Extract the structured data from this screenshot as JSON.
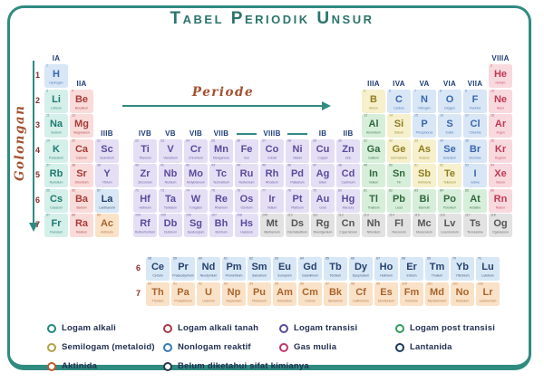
{
  "title": "Tabel Periodik Unsur",
  "axis": {
    "periode": "Periode",
    "golongan": "Golongan"
  },
  "period_numbers": [
    "1",
    "2",
    "3",
    "4",
    "5",
    "6",
    "7"
  ],
  "fblock_row_labels": [
    "6",
    "7"
  ],
  "frame_color": "#2f8b80",
  "group_labels": [
    {
      "text": "IA",
      "col": 1,
      "above_period": 1
    },
    {
      "text": "IIA",
      "col": 2,
      "above_period": 2
    },
    {
      "text": "IIIB",
      "col": 3,
      "above_period": 4
    },
    {
      "text": "IVB",
      "col": 4,
      "above_period": 4
    },
    {
      "text": "VB",
      "col": 5,
      "above_period": 4
    },
    {
      "text": "VIB",
      "col": 6,
      "above_period": 4
    },
    {
      "text": "VIIB",
      "col": 7,
      "above_period": 4
    },
    {
      "text": "VIIIB",
      "col": 9,
      "above_period": 4,
      "dashes": [
        8,
        10
      ]
    },
    {
      "text": "IB",
      "col": 11,
      "above_period": 4
    },
    {
      "text": "IIB",
      "col": 12,
      "above_period": 4
    },
    {
      "text": "IIIA",
      "col": 13,
      "above_period": 2
    },
    {
      "text": "IVA",
      "col": 14,
      "above_period": 2
    },
    {
      "text": "VA",
      "col": 15,
      "above_period": 2
    },
    {
      "text": "VIA",
      "col": 16,
      "above_period": 2
    },
    {
      "text": "VIIA",
      "col": 17,
      "above_period": 2
    },
    {
      "text": "VIIIA",
      "col": 18,
      "above_period": 1
    }
  ],
  "categories": {
    "alkali": {
      "bg": "#d5efe9",
      "fg": "#1d7a72"
    },
    "alkaline": {
      "bg": "#f9dcda",
      "fg": "#a93a38"
    },
    "transition": {
      "bg": "#e4dff4",
      "fg": "#5a4b9c"
    },
    "post": {
      "bg": "#d7efda",
      "fg": "#31683f"
    },
    "metalloid": {
      "bg": "#f6f0cc",
      "fg": "#8e7d22"
    },
    "nonmetal": {
      "bg": "#d8e6f6",
      "fg": "#3a67ae"
    },
    "noble": {
      "bg": "#f8d9dd",
      "fg": "#c03a55"
    },
    "lanthanide": {
      "bg": "#d7e7f5",
      "fg": "#27406e"
    },
    "actinide": {
      "bg": "#fae2c8",
      "fg": "#a9652c"
    },
    "unknown": {
      "bg": "#e2e2e2",
      "fg": "#555555"
    }
  },
  "elements": [
    [
      1,
      "H",
      "Hydrogen",
      1,
      1,
      "nonmetal"
    ],
    [
      2,
      "He",
      "Helium",
      1,
      18,
      "noble"
    ],
    [
      3,
      "Li",
      "Lithium",
      2,
      1,
      "alkali"
    ],
    [
      4,
      "Be",
      "Beryllium",
      2,
      2,
      "alkaline"
    ],
    [
      5,
      "B",
      "Boron",
      2,
      13,
      "metalloid"
    ],
    [
      6,
      "C",
      "Carbon",
      2,
      14,
      "nonmetal"
    ],
    [
      7,
      "N",
      "Nitrogen",
      2,
      15,
      "nonmetal"
    ],
    [
      8,
      "O",
      "Oxygen",
      2,
      16,
      "nonmetal"
    ],
    [
      9,
      "F",
      "Fluorine",
      2,
      17,
      "nonmetal"
    ],
    [
      10,
      "Ne",
      "Neon",
      2,
      18,
      "noble"
    ],
    [
      11,
      "Na",
      "Sodium",
      3,
      1,
      "alkali"
    ],
    [
      12,
      "Mg",
      "Magnesium",
      3,
      2,
      "alkaline"
    ],
    [
      13,
      "Al",
      "Aluminium",
      3,
      13,
      "post"
    ],
    [
      14,
      "Si",
      "Silicon",
      3,
      14,
      "metalloid"
    ],
    [
      15,
      "P",
      "Phosphorus",
      3,
      15,
      "nonmetal"
    ],
    [
      16,
      "S",
      "Sulfur",
      3,
      16,
      "nonmetal"
    ],
    [
      17,
      "Cl",
      "Chlorine",
      3,
      17,
      "nonmetal"
    ],
    [
      18,
      "Ar",
      "Argon",
      3,
      18,
      "noble"
    ],
    [
      19,
      "K",
      "Potassium",
      4,
      1,
      "alkali"
    ],
    [
      20,
      "Ca",
      "Calcium",
      4,
      2,
      "alkaline"
    ],
    [
      21,
      "Sc",
      "Scandium",
      4,
      3,
      "transition"
    ],
    [
      22,
      "Ti",
      "Titanium",
      4,
      4,
      "transition"
    ],
    [
      23,
      "V",
      "Vanadium",
      4,
      5,
      "transition"
    ],
    [
      24,
      "Cr",
      "Chromium",
      4,
      6,
      "transition"
    ],
    [
      25,
      "Mn",
      "Manganese",
      4,
      7,
      "transition"
    ],
    [
      26,
      "Fe",
      "Iron",
      4,
      8,
      "transition"
    ],
    [
      27,
      "Co",
      "Cobalt",
      4,
      9,
      "transition"
    ],
    [
      28,
      "Ni",
      "Nickel",
      4,
      10,
      "transition"
    ],
    [
      29,
      "Cu",
      "Copper",
      4,
      11,
      "transition"
    ],
    [
      30,
      "Zn",
      "Zinc",
      4,
      12,
      "transition"
    ],
    [
      31,
      "Ga",
      "Gallium",
      4,
      13,
      "post"
    ],
    [
      32,
      "Ge",
      "Germanium",
      4,
      14,
      "metalloid"
    ],
    [
      33,
      "As",
      "Arsenic",
      4,
      15,
      "metalloid"
    ],
    [
      34,
      "Se",
      "Selenium",
      4,
      16,
      "nonmetal"
    ],
    [
      35,
      "Br",
      "Bromine",
      4,
      17,
      "nonmetal"
    ],
    [
      36,
      "Kr",
      "Krypton",
      4,
      18,
      "noble"
    ],
    [
      37,
      "Rb",
      "Rubidium",
      5,
      1,
      "alkali"
    ],
    [
      38,
      "Sr",
      "Strontium",
      5,
      2,
      "alkaline"
    ],
    [
      39,
      "Y",
      "Yttrium",
      5,
      3,
      "transition"
    ],
    [
      40,
      "Zr",
      "Zirconium",
      5,
      4,
      "transition"
    ],
    [
      41,
      "Nb",
      "Niobium",
      5,
      5,
      "transition"
    ],
    [
      42,
      "Mo",
      "Molybdenum",
      5,
      6,
      "transition"
    ],
    [
      43,
      "Tc",
      "Technetium",
      5,
      7,
      "transition"
    ],
    [
      44,
      "Ru",
      "Ruthenium",
      5,
      8,
      "transition"
    ],
    [
      45,
      "Rh",
      "Rhodium",
      5,
      9,
      "transition"
    ],
    [
      46,
      "Pd",
      "Palladium",
      5,
      10,
      "transition"
    ],
    [
      47,
      "Ag",
      "Silver",
      5,
      11,
      "transition"
    ],
    [
      48,
      "Cd",
      "Cadmium",
      5,
      12,
      "transition"
    ],
    [
      49,
      "In",
      "Indium",
      5,
      13,
      "post"
    ],
    [
      50,
      "Sn",
      "Tin",
      5,
      14,
      "post"
    ],
    [
      51,
      "Sb",
      "Antimony",
      5,
      15,
      "metalloid"
    ],
    [
      52,
      "Te",
      "Tellurium",
      5,
      16,
      "metalloid"
    ],
    [
      53,
      "I",
      "Iodine",
      5,
      17,
      "nonmetal"
    ],
    [
      54,
      "Xe",
      "Xenon",
      5,
      18,
      "noble"
    ],
    [
      55,
      "Cs",
      "Caesium",
      6,
      1,
      "alkali"
    ],
    [
      56,
      "Ba",
      "Barium",
      6,
      2,
      "alkaline"
    ],
    [
      57,
      "La",
      "Lanthanum",
      6,
      3,
      "lanthanide"
    ],
    [
      72,
      "Hf",
      "Hafnium",
      6,
      4,
      "transition"
    ],
    [
      73,
      "Ta",
      "Tantalum",
      6,
      5,
      "transition"
    ],
    [
      74,
      "W",
      "Tungsten",
      6,
      6,
      "transition"
    ],
    [
      75,
      "Re",
      "Rhenium",
      6,
      7,
      "transition"
    ],
    [
      76,
      "Os",
      "Osmium",
      6,
      8,
      "transition"
    ],
    [
      77,
      "Ir",
      "Iridium",
      6,
      9,
      "transition"
    ],
    [
      78,
      "Pt",
      "Platinum",
      6,
      10,
      "transition"
    ],
    [
      79,
      "Au",
      "Gold",
      6,
      11,
      "transition"
    ],
    [
      80,
      "Hg",
      "Mercury",
      6,
      12,
      "transition"
    ],
    [
      81,
      "Tl",
      "Thallium",
      6,
      13,
      "post"
    ],
    [
      82,
      "Pb",
      "Lead",
      6,
      14,
      "post"
    ],
    [
      83,
      "Bi",
      "Bismuth",
      6,
      15,
      "post"
    ],
    [
      84,
      "Po",
      "Polonium",
      6,
      16,
      "post"
    ],
    [
      85,
      "At",
      "Astatine",
      6,
      17,
      "post"
    ],
    [
      86,
      "Rn",
      "Radon",
      6,
      18,
      "noble"
    ],
    [
      87,
      "Fr",
      "Francium",
      7,
      1,
      "alkali"
    ],
    [
      88,
      "Ra",
      "Radium",
      7,
      2,
      "alkaline"
    ],
    [
      89,
      "Ac",
      "Actinium",
      7,
      3,
      "actinide"
    ],
    [
      104,
      "Rf",
      "Rutherfordium",
      7,
      4,
      "transition"
    ],
    [
      105,
      "Db",
      "Dubnium",
      7,
      5,
      "transition"
    ],
    [
      106,
      "Sg",
      "Seaborgium",
      7,
      6,
      "transition"
    ],
    [
      107,
      "Bh",
      "Bohrium",
      7,
      7,
      "transition"
    ],
    [
      108,
      "Hs",
      "Hassium",
      7,
      8,
      "transition"
    ],
    [
      109,
      "Mt",
      "Meitnerium",
      7,
      9,
      "unknown"
    ],
    [
      110,
      "Ds",
      "Darmstadtium",
      7,
      10,
      "unknown"
    ],
    [
      111,
      "Rg",
      "Roentgenium",
      7,
      11,
      "unknown"
    ],
    [
      112,
      "Cn",
      "Copernicium",
      7,
      12,
      "unknown"
    ],
    [
      113,
      "Nh",
      "Nihonium",
      7,
      13,
      "unknown"
    ],
    [
      114,
      "Fl",
      "Flerovium",
      7,
      14,
      "unknown"
    ],
    [
      115,
      "Mc",
      "Moscovium",
      7,
      15,
      "unknown"
    ],
    [
      116,
      "Lv",
      "Livermorium",
      7,
      16,
      "unknown"
    ],
    [
      117,
      "Ts",
      "Tennessine",
      7,
      17,
      "unknown"
    ],
    [
      118,
      "Og",
      "Oganesson",
      7,
      18,
      "unknown"
    ]
  ],
  "lanthanides": [
    [
      58,
      "Ce",
      "Cerium"
    ],
    [
      59,
      "Pr",
      "Praseodymium"
    ],
    [
      60,
      "Nd",
      "Neodymium"
    ],
    [
      61,
      "Pm",
      "Promethium"
    ],
    [
      62,
      "Sm",
      "Samarium"
    ],
    [
      63,
      "Eu",
      "Europium"
    ],
    [
      64,
      "Gd",
      "Gadolinium"
    ],
    [
      65,
      "Tb",
      "Terbium"
    ],
    [
      66,
      "Dy",
      "Dysprosium"
    ],
    [
      67,
      "Ho",
      "Holmium"
    ],
    [
      68,
      "Er",
      "Erbium"
    ],
    [
      69,
      "Tm",
      "Thulium"
    ],
    [
      70,
      "Yb",
      "Ytterbium"
    ],
    [
      71,
      "Lu",
      "Lutetium"
    ]
  ],
  "actinides": [
    [
      90,
      "Th",
      "Thorium"
    ],
    [
      91,
      "Pa",
      "Protactinium"
    ],
    [
      92,
      "U",
      "Uranium"
    ],
    [
      93,
      "Np",
      "Neptunium"
    ],
    [
      94,
      "Pu",
      "Plutonium"
    ],
    [
      95,
      "Am",
      "Americium"
    ],
    [
      96,
      "Cm",
      "Curium"
    ],
    [
      97,
      "Bk",
      "Berkelium"
    ],
    [
      98,
      "Cf",
      "Californium"
    ],
    [
      99,
      "Es",
      "Einsteinium"
    ],
    [
      100,
      "Fm",
      "Fermium"
    ],
    [
      101,
      "Md",
      "Mendelevium"
    ],
    [
      102,
      "No",
      "Nobelium"
    ],
    [
      103,
      "Lr",
      "Lawrencium"
    ]
  ],
  "legend": {
    "columns": [
      [
        {
          "label": "Logam alkali",
          "color": "#1d8a80"
        },
        {
          "label": "Semilogam (metaloid)",
          "color": "#b5a04a"
        },
        {
          "label": "Aktinida",
          "color": "#c05a2a"
        }
      ],
      [
        {
          "label": "Logam alkali tanah",
          "color": "#a93a48"
        },
        {
          "label": "Nonlogam reaktif",
          "color": "#3a7ab8"
        },
        {
          "label": "Belum diketahui sifat kimianya",
          "color": "#2a3a4a"
        }
      ],
      [
        {
          "label": "Logam transisi",
          "color": "#5a4b9c"
        },
        {
          "label": "Gas mulia",
          "color": "#c03a6a"
        }
      ],
      [
        {
          "label": "Logam post transisi",
          "color": "#2f9e5f"
        },
        {
          "label": "Lantanida",
          "color": "#1d3a5e"
        }
      ]
    ]
  }
}
